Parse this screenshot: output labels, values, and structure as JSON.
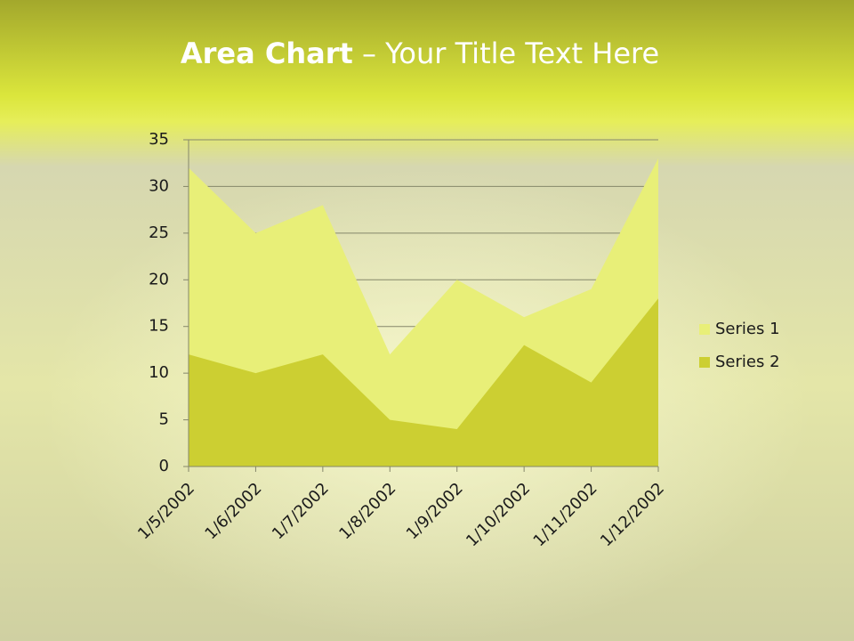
{
  "title_bold": "Area Chart",
  "title_rest": "– Your Title Text Here",
  "chart_data": {
    "type": "area",
    "categories": [
      "1/5/2002",
      "1/6/2002",
      "1/7/2002",
      "1/8/2002",
      "1/9/2002",
      "1/10/2002",
      "1/11/2002",
      "1/12/2002"
    ],
    "series": [
      {
        "name": "Series 1",
        "color": "#e8ef78",
        "values": [
          32,
          25,
          28,
          12,
          20,
          16,
          19,
          33
        ]
      },
      {
        "name": "Series 2",
        "color": "#cccf32",
        "values": [
          12,
          10,
          12,
          5,
          4,
          13,
          9,
          18
        ]
      }
    ],
    "ylim": [
      0,
      35
    ],
    "yticks": [
      0,
      5,
      10,
      15,
      20,
      25,
      30,
      35
    ],
    "grid": true,
    "legend": "right"
  }
}
